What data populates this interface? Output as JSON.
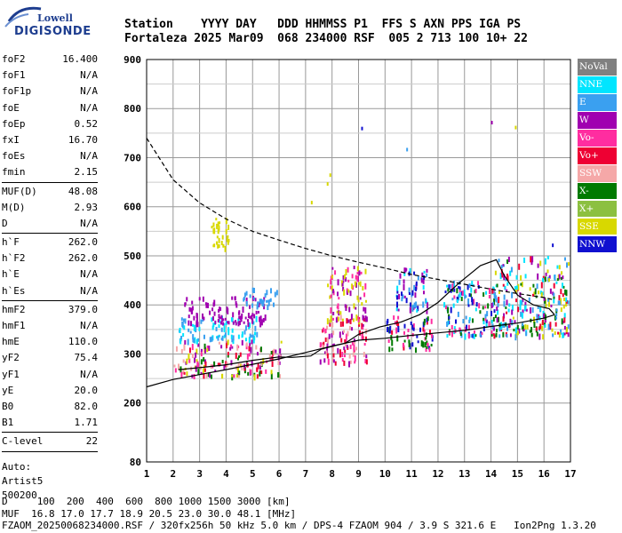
{
  "logo": {
    "line1": "Lowell",
    "line2": "DIGISONDE"
  },
  "header": {
    "labels_line": "Station    YYYY DAY   DDD HHMMSS P1  FFS S AXN PPS IGA PS",
    "values_line": "Fortaleza 2025 Mar09  068 234000 RSF  005 2 713 100 10+ 22"
  },
  "params": [
    {
      "group": [
        {
          "k": "foF2",
          "v": "16.400"
        },
        {
          "k": "foF1",
          "v": "N/A"
        },
        {
          "k": "foF1p",
          "v": "N/A"
        },
        {
          "k": "foE",
          "v": "N/A"
        },
        {
          "k": "foEp",
          "v": "0.52"
        },
        {
          "k": "fxI",
          "v": "16.70"
        },
        {
          "k": "foEs",
          "v": "N/A"
        },
        {
          "k": "fmin",
          "v": "2.15"
        }
      ]
    },
    {
      "group": [
        {
          "k": "MUF(D)",
          "v": "48.08"
        },
        {
          "k": "M(D)",
          "v": "2.93"
        },
        {
          "k": "D",
          "v": "N/A"
        }
      ]
    },
    {
      "group": [
        {
          "k": "h`F",
          "v": "262.0"
        },
        {
          "k": "h`F2",
          "v": "262.0"
        },
        {
          "k": "h`E",
          "v": "N/A"
        },
        {
          "k": "h`Es",
          "v": "N/A"
        }
      ]
    },
    {
      "group": [
        {
          "k": "hmF2",
          "v": "379.0"
        },
        {
          "k": "hmF1",
          "v": "N/A"
        },
        {
          "k": "hmE",
          "v": "110.0"
        },
        {
          "k": "yF2",
          "v": "75.4"
        },
        {
          "k": "yF1",
          "v": "N/A"
        },
        {
          "k": "yE",
          "v": "20.0"
        },
        {
          "k": "B0",
          "v": "82.0"
        },
        {
          "k": "B1",
          "v": "1.71"
        }
      ]
    },
    {
      "group": [
        {
          "k": "C-level",
          "v": "22"
        }
      ]
    }
  ],
  "auto": [
    "Auto:",
    "Artist5",
    "500200"
  ],
  "legend": [
    {
      "label": "NoVal",
      "color": "#808080"
    },
    {
      "label": "NNE",
      "color": "#00e5ff"
    },
    {
      "label": "E",
      "color": "#3aa0f0"
    },
    {
      "label": "W",
      "color": "#a000b0"
    },
    {
      "label": "Vo-",
      "color": "#ff2da0"
    },
    {
      "label": "Vo+",
      "color": "#ee0033"
    },
    {
      "label": "SSW",
      "color": "#f5a8a8"
    },
    {
      "label": "X-",
      "color": "#007a00"
    },
    {
      "label": "X+",
      "color": "#8cc040"
    },
    {
      "label": "SSE",
      "color": "#d8d800"
    },
    {
      "label": "NNW",
      "color": "#1010d0"
    }
  ],
  "footer": {
    "d_line": "D     100  200  400  600  800 1000 1500 3000 [km]",
    "muf_line": "MUF  16.8 17.0 17.7 18.9 20.5 23.0 30.0 48.1 [MHz]",
    "file_line": "FZAOM_20250068234000.RSF / 320fx256h 50 kHz 5.0 km / DPS-4 FZAOM 904 / 3.9 S 321.6 E   Ion2Png 1.3.20"
  },
  "chart_data": {
    "type": "scatter",
    "xlim": [
      1,
      17
    ],
    "ylim": [
      80,
      900
    ],
    "x_ticks": [
      1,
      2,
      3,
      4,
      5,
      6,
      7,
      8,
      9,
      10,
      11,
      12,
      13,
      14,
      15,
      16,
      17
    ],
    "y_ticks": [
      80,
      200,
      300,
      400,
      500,
      600,
      700,
      800,
      900
    ],
    "grid": true,
    "legend_position": "right",
    "profile_solid": [
      [
        1.0,
        233
      ],
      [
        2.0,
        248
      ],
      [
        3.0,
        258
      ],
      [
        4.0,
        268
      ],
      [
        5.0,
        279
      ],
      [
        6.0,
        290
      ],
      [
        7.0,
        303
      ],
      [
        8.0,
        316
      ],
      [
        9.0,
        328
      ],
      [
        10.0,
        332
      ],
      [
        11.0,
        338
      ],
      [
        12.0,
        343
      ],
      [
        13.0,
        348
      ],
      [
        14.0,
        356
      ],
      [
        15.0,
        363
      ],
      [
        16.0,
        373
      ],
      [
        16.4,
        380
      ]
    ],
    "profile_dashed": [
      [
        1.0,
        740
      ],
      [
        2.0,
        655
      ],
      [
        3.0,
        608
      ],
      [
        4.0,
        575
      ],
      [
        5.0,
        550
      ],
      [
        6.0,
        532
      ],
      [
        7.0,
        515
      ],
      [
        8.0,
        500
      ],
      [
        9.0,
        487
      ],
      [
        10.0,
        475
      ],
      [
        11.0,
        462
      ],
      [
        12.0,
        452
      ],
      [
        13.0,
        442
      ],
      [
        14.0,
        432
      ],
      [
        15.0,
        423
      ],
      [
        16.0,
        415
      ],
      [
        16.4,
        410
      ]
    ],
    "trace_f2": [
      [
        2.2,
        268
      ],
      [
        3.0,
        272
      ],
      [
        4.0,
        278
      ],
      [
        5.0,
        287
      ],
      [
        6.0,
        294
      ],
      [
        6.5,
        293
      ],
      [
        7.2,
        296
      ],
      [
        7.6,
        310
      ],
      [
        8.5,
        322
      ],
      [
        9.0,
        340
      ],
      [
        9.8,
        355
      ],
      [
        10.6,
        365
      ],
      [
        11.3,
        380
      ],
      [
        12.0,
        405
      ],
      [
        12.8,
        445
      ],
      [
        13.6,
        480
      ],
      [
        14.2,
        492
      ],
      [
        14.5,
        460
      ],
      [
        15.0,
        420
      ],
      [
        15.6,
        400
      ],
      [
        16.2,
        392
      ],
      [
        16.4,
        380
      ]
    ],
    "echo_clusters": [
      {
        "x": [
          2.0,
          6.1
        ],
        "y": [
          258,
          330
        ],
        "series": [
          "Vo+",
          "Vo-",
          "SSW",
          "X-",
          "W",
          "SSE"
        ]
      },
      {
        "x": [
          2.2,
          5.2
        ],
        "y": [
          330,
          380
        ],
        "series": [
          "E",
          "NNE"
        ]
      },
      {
        "x": [
          2.3,
          5.5
        ],
        "y": [
          365,
          420
        ],
        "series": [
          "W"
        ]
      },
      {
        "x": [
          4.5,
          5.9
        ],
        "y": [
          400,
          440
        ],
        "series": [
          "E"
        ]
      },
      {
        "x": [
          3.4,
          4.1
        ],
        "y": [
          520,
          580
        ],
        "series": [
          "SSE"
        ]
      },
      {
        "x": [
          7.5,
          9.3
        ],
        "y": [
          285,
          380
        ],
        "series": [
          "Vo+",
          "Vo-",
          "W",
          "SSW"
        ]
      },
      {
        "x": [
          7.8,
          9.3
        ],
        "y": [
          370,
          480
        ],
        "series": [
          "W",
          "Vo-",
          "SSE"
        ]
      },
      {
        "x": [
          10.0,
          11.8
        ],
        "y": [
          310,
          380
        ],
        "series": [
          "Vo+",
          "Vo-",
          "X-",
          "NNW"
        ]
      },
      {
        "x": [
          10.4,
          11.6
        ],
        "y": [
          390,
          480
        ],
        "series": [
          "E",
          "NNW",
          "W",
          "NNE"
        ]
      },
      {
        "x": [
          12.2,
          14.2
        ],
        "y": [
          340,
          450
        ],
        "series": [
          "NNW",
          "Vo-",
          "E",
          "NNE",
          "X-"
        ]
      },
      {
        "x": [
          14.0,
          16.9
        ],
        "y": [
          340,
          500
        ],
        "series": [
          "NNE",
          "E",
          "Vo+",
          "X-",
          "SSE",
          "W"
        ]
      }
    ]
  }
}
